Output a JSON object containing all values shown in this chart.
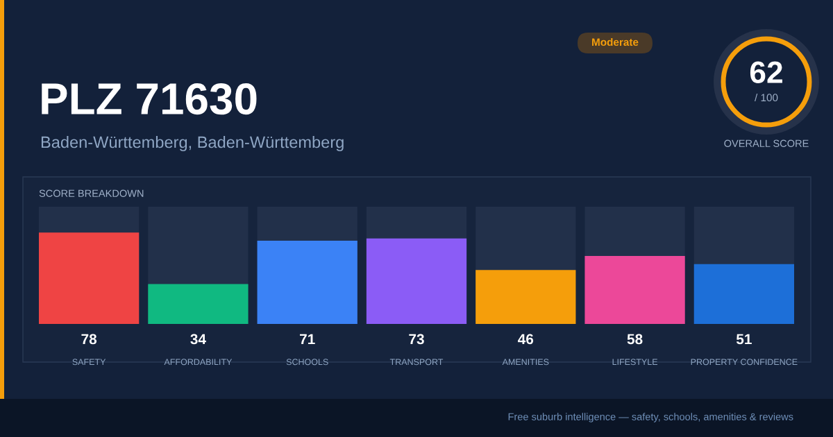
{
  "chart_data": {
    "type": "bar",
    "title": "PLZ 71630",
    "subtitle": "Baden-Württemberg, Baden-Württemberg",
    "annotations": [
      "Moderate",
      "62",
      "/ 100",
      "OVERALL SCORE",
      "SCORE BREAKDOWN",
      "Free suburb intelligence — safety, schools, amenities & reviews"
    ],
    "categories": [
      "SAFETY",
      "AFFORDABILITY",
      "SCHOOLS",
      "TRANSPORT",
      "AMENITIES",
      "LIFESTYLE",
      "PROPERTY CONFIDENCE"
    ],
    "values": [
      78,
      34,
      71,
      73,
      46,
      58,
      51
    ],
    "colors": [
      "#ef4444",
      "#10b981",
      "#3b82f6",
      "#8b5cf6",
      "#f59e0b",
      "#ec4899",
      "#1d6fd8"
    ],
    "ylim": [
      0,
      100
    ],
    "data_labels": true,
    "tick_labels": "x",
    "grid": false,
    "legend": false
  }
}
